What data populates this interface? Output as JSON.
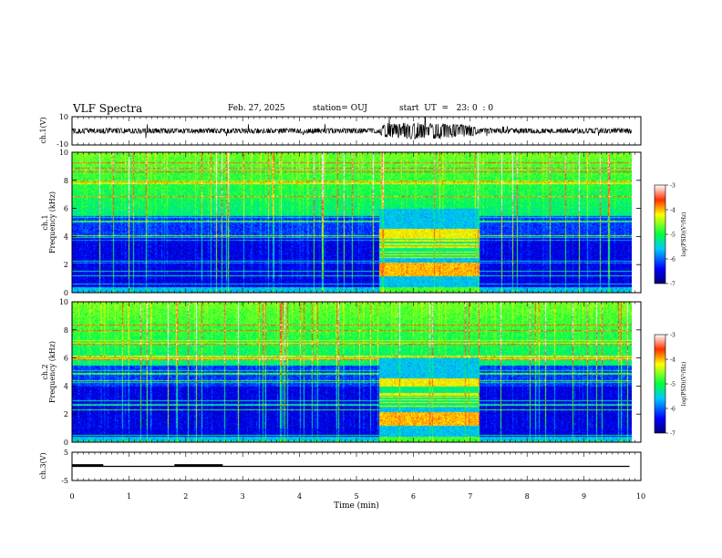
{
  "header": {
    "title": "VLF Spectra",
    "date": "Feb. 27, 2025",
    "station": "station= OUJ",
    "start_ut": "start  UT  =   23: 0  : 0"
  },
  "chart_data": [
    {
      "type": "line",
      "panel": "ch1-waveform",
      "ylabel": "ch.1(V)",
      "ylim": [
        -10,
        10
      ],
      "y_ticks": [
        "10",
        "-10"
      ],
      "xlim": [
        0,
        10
      ],
      "series": [
        {
          "amplitude_envelope": {
            "x": [
              0,
              5.4,
              5.5,
              6.0,
              6.5,
              7.0,
              7.2,
              9.8
            ],
            "y": [
              1.5,
              1.5,
              4.5,
              5.0,
              4.5,
              3.5,
              1.5,
              1.5
            ]
          }
        }
      ]
    },
    {
      "type": "heatmap",
      "panel": "ch1-spectrogram",
      "ylabel": "ch.1\nFrequency (kHz)",
      "ylim": [
        0,
        10
      ],
      "y_ticks": [
        "0",
        "2",
        "4",
        "6",
        "8",
        "10"
      ],
      "xlim": [
        0,
        10
      ],
      "colorbar": {
        "label": "log(PSD)(V²/Hz)",
        "range": [
          -7,
          -3
        ],
        "ticks": [
          "-3",
          "-4",
          "-5",
          "-6",
          "-7"
        ]
      },
      "burst_interval_min": [
        5.4,
        7.15
      ]
    },
    {
      "type": "heatmap",
      "panel": "ch2-spectrogram",
      "ylabel": "ch.2\nFrequency (kHz)",
      "ylim": [
        0,
        10
      ],
      "y_ticks": [
        "0",
        "2",
        "4",
        "6",
        "8",
        "10"
      ],
      "xlim": [
        0,
        10
      ],
      "colorbar": {
        "label": "log(PSD)(V²/Hz)",
        "range": [
          -7,
          -3
        ],
        "ticks": [
          "-3",
          "-4",
          "-5",
          "-6",
          "-7"
        ]
      },
      "burst_interval_min": [
        5.4,
        7.15
      ]
    },
    {
      "type": "line",
      "panel": "ch3-signal",
      "ylabel": "ch.3(V)",
      "ylim": [
        -5,
        5
      ],
      "y_ticks": [
        "5",
        "-5"
      ],
      "xlim": [
        0,
        10
      ],
      "xlabel": "Time (min)",
      "x_ticks": [
        "0",
        "1",
        "2",
        "3",
        "4",
        "5",
        "6",
        "7",
        "8",
        "9",
        "10"
      ],
      "series": [
        {
          "x": [
            0,
            9.8
          ],
          "y": [
            0,
            0
          ]
        },
        {
          "x": [
            0,
            0.55
          ],
          "y": [
            0.4,
            0.4
          ]
        },
        {
          "x": [
            1.8,
            2.65
          ],
          "y": [
            0.4,
            0.4
          ]
        }
      ]
    }
  ]
}
